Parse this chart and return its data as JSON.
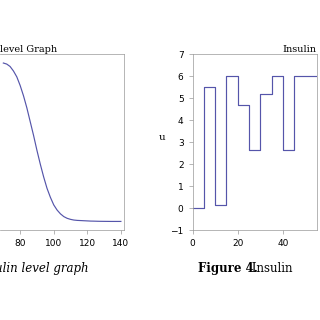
{
  "left_title": "level Graph",
  "left_xlim": [
    68,
    142
  ],
  "left_ylim": [
    -0.1,
    5.0
  ],
  "left_xticks": [
    80,
    100,
    120,
    140
  ],
  "left_yticks": [],
  "left_x": [
    70,
    72,
    74,
    76,
    78,
    80,
    82,
    84,
    86,
    88,
    90,
    92,
    94,
    96,
    98,
    100,
    102,
    104,
    106,
    108,
    110,
    112,
    114,
    116,
    118,
    120,
    122,
    124,
    126,
    128,
    130,
    132,
    134,
    136,
    138,
    140
  ],
  "left_y": [
    4.75,
    4.72,
    4.65,
    4.52,
    4.35,
    4.1,
    3.8,
    3.45,
    3.05,
    2.65,
    2.22,
    1.82,
    1.45,
    1.12,
    0.86,
    0.64,
    0.49,
    0.38,
    0.3,
    0.25,
    0.22,
    0.2,
    0.19,
    0.185,
    0.18,
    0.175,
    0.17,
    0.168,
    0.165,
    0.163,
    0.162,
    0.161,
    0.16,
    0.16,
    0.16,
    0.16
  ],
  "right_title": "Insulin",
  "right_ylabel": "u",
  "right_xlim": [
    0,
    55
  ],
  "right_ylim": [
    -1,
    7
  ],
  "right_xticks": [
    0,
    20,
    40
  ],
  "right_yticks": [
    -1,
    0,
    1,
    2,
    3,
    4,
    5,
    6,
    7
  ],
  "right_step_x": [
    0,
    5,
    5,
    10,
    10,
    15,
    15,
    20,
    20,
    25,
    25,
    30,
    30,
    35,
    35,
    40,
    40,
    45,
    45,
    55
  ],
  "right_step_y": [
    0,
    0,
    5.5,
    5.5,
    0.15,
    0.15,
    6.0,
    6.0,
    4.7,
    4.7,
    2.65,
    2.65,
    5.2,
    5.2,
    6.0,
    6.0,
    2.65,
    2.65,
    6.0,
    6.0
  ],
  "line_color": "#5555aa",
  "caption_left": "ulin level graph",
  "caption_right_bold": "Figure 4.",
  "caption_right_normal": " Insulin",
  "bg_color": "#ffffff",
  "tick_fontsize": 6.5,
  "title_fontsize": 7,
  "ylabel_fontsize": 7.5,
  "caption_fontsize": 8.5
}
